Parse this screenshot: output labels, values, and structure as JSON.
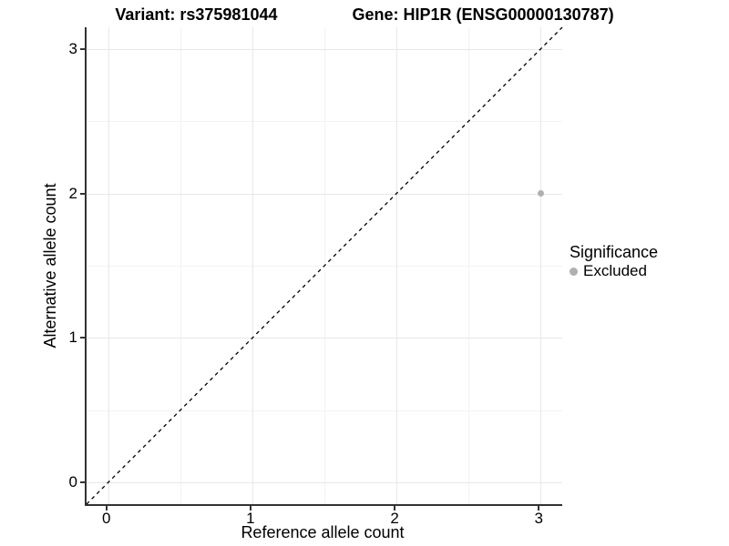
{
  "header": {
    "variant_title": "Variant: rs375981044",
    "gene_title": "Gene: HIP1R (ENSG00000130787)"
  },
  "chart_data": {
    "type": "scatter",
    "title": "Variant: rs375981044 | Gene: HIP1R (ENSG00000130787)",
    "xlabel": "Reference allele count",
    "ylabel": "Alternative allele count",
    "xlim": [
      -0.15,
      3.15
    ],
    "ylim": [
      -0.15,
      3.15
    ],
    "x_ticks": [
      0,
      1,
      2,
      3
    ],
    "y_ticks": [
      0,
      1,
      2,
      3
    ],
    "x_minor_ticks": [
      0.5,
      1.5,
      2.5
    ],
    "y_minor_ticks": [
      0.5,
      1.5,
      2.5
    ],
    "grid": "major+minor",
    "reference_line": {
      "kind": "identity",
      "slope": 1,
      "intercept": 0,
      "style": "dashed",
      "color": "#000000"
    },
    "series": [
      {
        "name": "Excluded",
        "color": "#b0b0b0",
        "points": [
          [
            3,
            2
          ]
        ]
      }
    ],
    "legend": {
      "title": "Significance",
      "position": "right",
      "items": [
        {
          "label": "Excluded",
          "color": "#b0b0b0",
          "marker": "circle"
        }
      ]
    },
    "colors": {
      "background": "#ffffff",
      "grid_major": "#e8e8e8",
      "grid_minor": "#f3f3f3",
      "axis": "#333333",
      "text": "#000000",
      "point": "#b0b0b0"
    }
  }
}
